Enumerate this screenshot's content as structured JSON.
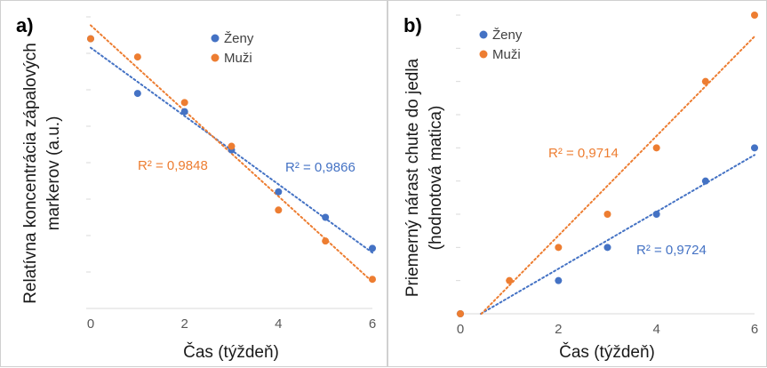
{
  "colors": {
    "zeny": "#4472c4",
    "muzi": "#ed7d31"
  },
  "chart_data": [
    {
      "type": "scatter",
      "panel": "a)",
      "xlabel": "Čas (týždeň)",
      "ylabel_lines": [
        "Relatívna koncentrácia zápalových",
        "markerov (a.u.)"
      ],
      "x_ticks": [
        "0",
        "2",
        "4",
        "6"
      ],
      "xlim": [
        0,
        6
      ],
      "ylim": [
        0,
        8
      ],
      "legend": [
        "Ženy",
        "Muži"
      ],
      "legend_position": "top",
      "series": [
        {
          "name": "Ženy",
          "color": "#4472c4",
          "x": [
            0,
            1,
            2,
            3,
            4,
            5,
            6
          ],
          "y": [
            7.4,
            5.9,
            5.4,
            4.35,
            3.2,
            2.5,
            1.65
          ],
          "trendline": {
            "type": "linear",
            "r2_label": "R² = 0,9866"
          }
        },
        {
          "name": "Muži",
          "color": "#ed7d31",
          "x": [
            0,
            1,
            2,
            3,
            4,
            5,
            6
          ],
          "y": [
            7.4,
            6.9,
            5.65,
            4.45,
            2.7,
            1.85,
            0.8
          ],
          "trendline": {
            "type": "linear",
            "r2_label": "R² = 0,9848"
          }
        }
      ]
    },
    {
      "type": "scatter",
      "panel": "b)",
      "xlabel": "Čas (týždeň)",
      "ylabel_lines": [
        "Priemerný nárast chute do jedla",
        "(hodnotová matica)"
      ],
      "x_ticks": [
        "0",
        "2",
        "4",
        "6"
      ],
      "xlim": [
        0,
        6
      ],
      "ylim": [
        0,
        9
      ],
      "legend": [
        "Ženy",
        "Muži"
      ],
      "legend_position": "top",
      "series": [
        {
          "name": "Ženy",
          "color": "#4472c4",
          "x": [
            0,
            2,
            3,
            4,
            5,
            6
          ],
          "y": [
            0,
            1,
            2,
            3,
            4,
            5
          ],
          "trendline": {
            "type": "linear",
            "r2_label": "R² = 0,9724"
          }
        },
        {
          "name": "Muži",
          "color": "#ed7d31",
          "x": [
            0,
            1,
            2,
            3,
            4,
            5,
            6
          ],
          "y": [
            0,
            1,
            2,
            3,
            5,
            7,
            9
          ],
          "trendline": {
            "type": "linear",
            "r2_label": "R² = 0,9714"
          }
        }
      ]
    }
  ]
}
